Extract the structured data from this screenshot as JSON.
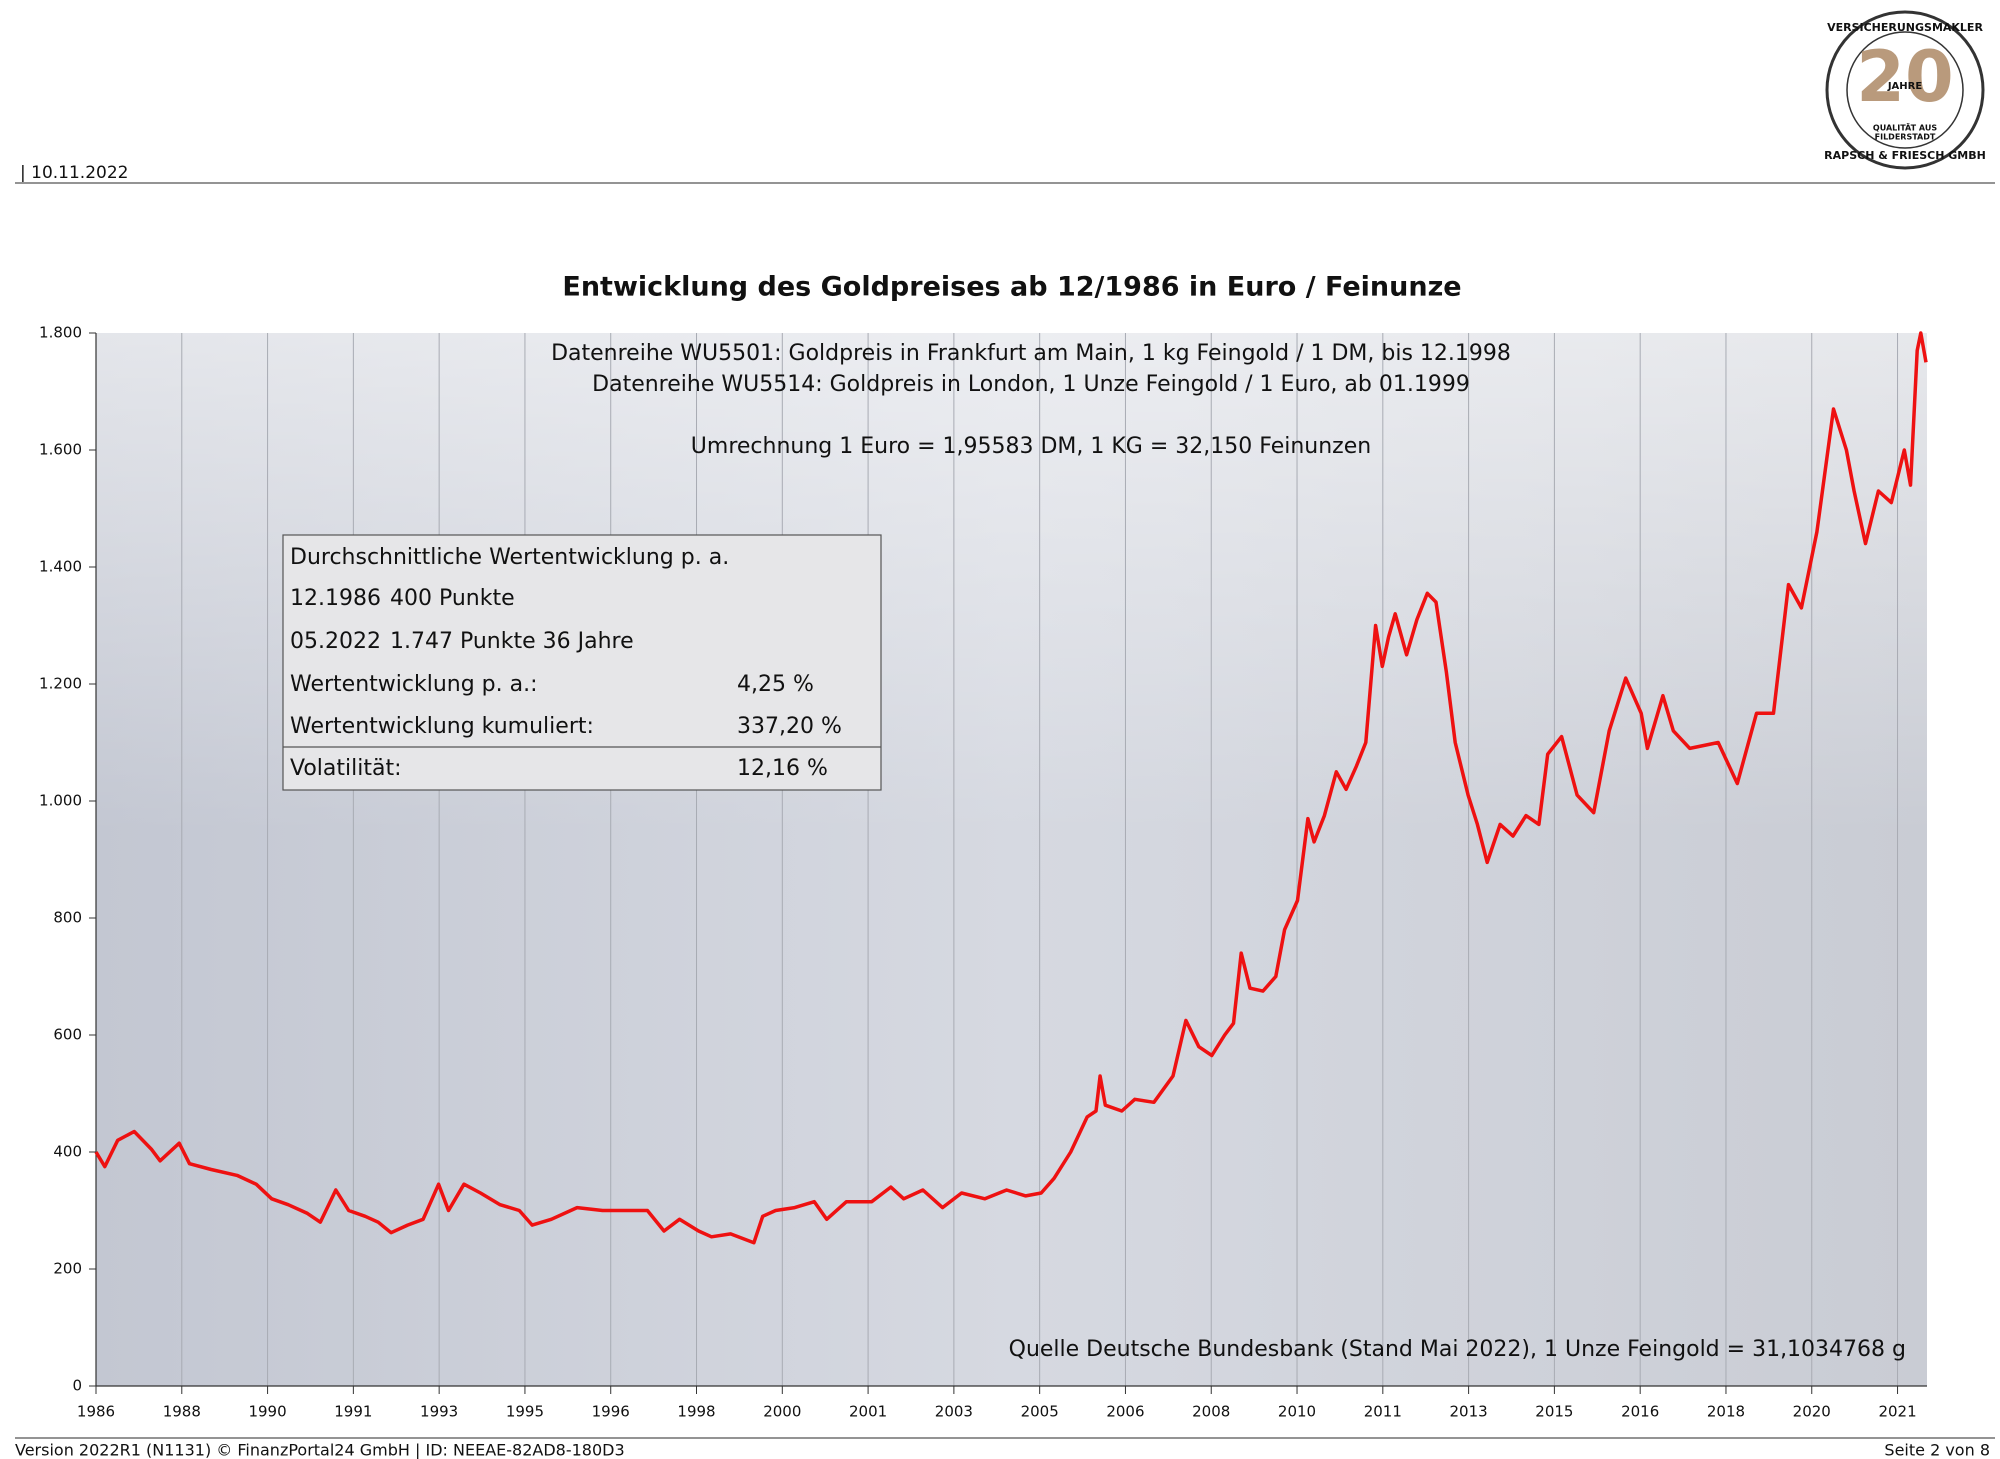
{
  "header": {
    "date": "| 10.11.2022"
  },
  "logo": {
    "ring_top": "VERSICHERUNGSMAKLER",
    "number": "20",
    "unit": "JAHRE",
    "line1": "QUALITÄT AUS",
    "line2": "FILDERSTADT",
    "ring_bottom": "RAPSCH & FRIESCH GMBH"
  },
  "chart_data": {
    "type": "line",
    "title": "Entwicklung des Goldpreises ab 12/1986 in Euro / Feinunze",
    "annotations": [
      "Datenreihe WU5501: Goldpreis in Frankfurt am Main, 1 kg Feingold / 1 DM, bis 12.1998",
      "Datenreihe WU5514: Goldpreis in London, 1 Unze Feingold / 1 Euro, ab 01.1999",
      "Umrechnung 1 Euro = 1,95583 DM, 1 KG = 32,150 Feinunzen"
    ],
    "source": "Quelle Deutsche Bundesbank (Stand Mai 2022), 1 Unze Feingold = 31,1034768 g",
    "color": "#ee1111",
    "x": [
      1986.92,
      1987.09,
      1987.34,
      1987.66,
      1987.99,
      1988.16,
      1988.53,
      1988.73,
      1989.15,
      1989.65,
      1990.02,
      1990.32,
      1990.64,
      1991.01,
      1991.26,
      1991.56,
      1991.81,
      1992.13,
      1992.38,
      1992.63,
      1992.95,
      1993.25,
      1993.55,
      1993.74,
      1994.04,
      1994.36,
      1994.74,
      1995.11,
      1995.36,
      1995.73,
      1996.23,
      1996.72,
      1997.22,
      1997.59,
      1997.91,
      1998.21,
      1998.58,
      1998.83,
      1999.2,
      1999.65,
      1999.82,
      2000.07,
      2000.44,
      2000.82,
      2001.06,
      2001.44,
      2001.93,
      2002.3,
      2002.55,
      2002.92,
      2003.3,
      2003.67,
      2004.12,
      2004.54,
      2004.91,
      2005.21,
      2005.46,
      2005.78,
      2006.1,
      2006.27,
      2006.35,
      2006.45,
      2006.77,
      2007.02,
      2007.39,
      2007.76,
      2008.01,
      2008.26,
      2008.51,
      2008.76,
      2008.93,
      2009.08,
      2009.25,
      2009.5,
      2009.75,
      2009.92,
      2010.17,
      2010.37,
      2010.49,
      2010.69,
      2010.92,
      2011.11,
      2011.31,
      2011.49,
      2011.68,
      2011.81,
      2011.93,
      2012.06,
      2012.28,
      2012.48,
      2012.68,
      2012.85,
      2013.05,
      2013.22,
      2013.47,
      2013.65,
      2013.84,
      2014.09,
      2014.34,
      2014.59,
      2014.84,
      2015.01,
      2015.28,
      2015.58,
      2015.9,
      2016.2,
      2016.52,
      2016.82,
      2016.94,
      2017.24,
      2017.44,
      2017.76,
      2018.31,
      2018.68,
      2019.05,
      2019.38,
      2019.67,
      2019.92,
      2020.22,
      2020.54,
      2020.79,
      2020.94,
      2021.16,
      2021.41,
      2021.66,
      2021.91,
      2022.03,
      2022.16,
      2022.23,
      2022.33
    ],
    "values": [
      400,
      375,
      420,
      435,
      405,
      385,
      415,
      380,
      370,
      360,
      345,
      320,
      310,
      295,
      280,
      335,
      300,
      290,
      280,
      262,
      275,
      285,
      345,
      300,
      345,
      330,
      310,
      300,
      275,
      285,
      305,
      300,
      300,
      300,
      265,
      285,
      265,
      255,
      260,
      245,
      290,
      300,
      305,
      315,
      285,
      315,
      315,
      340,
      320,
      335,
      305,
      330,
      320,
      335,
      325,
      330,
      355,
      400,
      460,
      470,
      530,
      480,
      470,
      490,
      485,
      530,
      625,
      580,
      565,
      600,
      620,
      740,
      680,
      675,
      700,
      780,
      830,
      970,
      930,
      975,
      1050,
      1020,
      1060,
      1100,
      1300,
      1230,
      1280,
      1320,
      1250,
      1310,
      1355,
      1340,
      1220,
      1100,
      1010,
      960,
      895,
      960,
      940,
      975,
      960,
      1080,
      1110,
      1010,
      980,
      1120,
      1210,
      1150,
      1090,
      1180,
      1120,
      1090,
      1100,
      1030,
      1150,
      1150,
      1370,
      1330,
      1460,
      1670,
      1600,
      1530,
      1440,
      1530,
      1510,
      1600,
      1540,
      1770,
      1800,
      1750
    ],
    "xlim": [
      1986.92,
      2022.35
    ],
    "xticks": [
      {
        "value": 1986.92,
        "label": "1986"
      },
      {
        "value": 1988.58,
        "label": "1988"
      },
      {
        "value": 1990.24,
        "label": "1990"
      },
      {
        "value": 1991.9,
        "label": "1991"
      },
      {
        "value": 1993.56,
        "label": "1993"
      },
      {
        "value": 1995.22,
        "label": "1995"
      },
      {
        "value": 1996.88,
        "label": "1996"
      },
      {
        "value": 1998.54,
        "label": "1998"
      },
      {
        "value": 2000.2,
        "label": "2000"
      },
      {
        "value": 2001.86,
        "label": "2001"
      },
      {
        "value": 2003.52,
        "label": "2003"
      },
      {
        "value": 2005.18,
        "label": "2005"
      },
      {
        "value": 2006.84,
        "label": "2006"
      },
      {
        "value": 2008.5,
        "label": "2008"
      },
      {
        "value": 2010.16,
        "label": "2010"
      },
      {
        "value": 2011.82,
        "label": "2011"
      },
      {
        "value": 2013.48,
        "label": "2013"
      },
      {
        "value": 2015.14,
        "label": "2015"
      },
      {
        "value": 2016.8,
        "label": "2016"
      },
      {
        "value": 2018.46,
        "label": "2018"
      },
      {
        "value": 2020.12,
        "label": "2020"
      },
      {
        "value": 2021.78,
        "label": "2021"
      }
    ],
    "ylim": [
      0,
      1800
    ],
    "yticks": [
      0,
      200,
      400,
      600,
      800,
      {
        "value": 1000,
        "label": "1.000"
      },
      {
        "value": 1200,
        "label": "1.200"
      },
      {
        "value": 1400,
        "label": "1.400"
      },
      {
        "value": 1600,
        "label": "1.600"
      },
      {
        "value": 1800,
        "label": "1.800"
      }
    ],
    "xgrid": true
  },
  "info_box": {
    "title": "Durchschnittliche Wertentwicklung p. a.",
    "rows": [
      [
        "12.1986",
        "400 Punkte"
      ],
      [
        "05.2022",
        "1.747 Punkte 36 Jahre"
      ],
      [
        "Wertentwicklung p. a.:",
        "4,25 %"
      ],
      [
        "Wertentwicklung kumuliert:",
        "337,20 %"
      ],
      [
        "Volatilität:",
        "12,16 %"
      ]
    ]
  },
  "footer": {
    "left": "Version 2022R1 (N1131) © FinanzPortal24 GmbH | ID: NEEAE-82AD8-180D3",
    "right": "Seite 2 von 8"
  }
}
